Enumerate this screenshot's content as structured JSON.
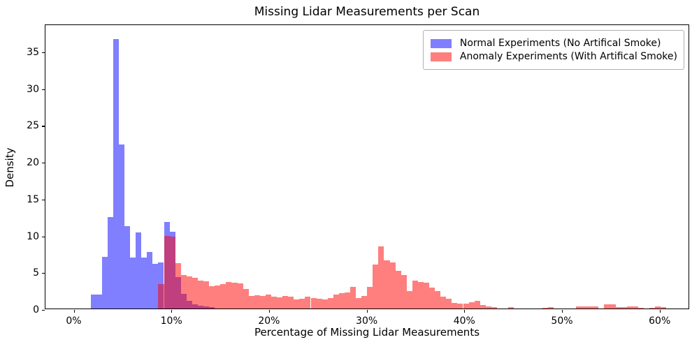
{
  "title": "Missing Lidar Measurements per Scan",
  "xlabel": "Percentage of Missing Lidar Measurements",
  "ylabel": "Density",
  "colors": {
    "normal_fill": "rgba(0,0,255,0.5)",
    "anomaly_fill": "rgba(255,0,0,0.5)",
    "normal_legend_swatch": "#7f7fff",
    "anomaly_legend_swatch": "#ff7f7f",
    "overlap_appearance": "#bf4080",
    "spine": "#000000",
    "legend_border": "#b0b0b0"
  },
  "legend": {
    "items": [
      {
        "label": "Normal Experiments (No Artifical Smoke)",
        "swatch": "#7f7fff"
      },
      {
        "label": "Anomaly Experiments (With Artifical Smoke)",
        "swatch": "#ff7f7f"
      }
    ],
    "position": "upper right"
  },
  "chart_data": {
    "type": "histogram",
    "title": "Missing Lidar Measurements per Scan",
    "xlabel": "Percentage of Missing Lidar Measurements",
    "ylabel": "Density",
    "xlim": [
      -2.9,
      63.1
    ],
    "ylim": [
      0,
      38.7
    ],
    "grid": false,
    "x_ticks": [
      {
        "value": 0,
        "label": "0%"
      },
      {
        "value": 10,
        "label": "10%"
      },
      {
        "value": 20,
        "label": "20%"
      },
      {
        "value": 30,
        "label": "30%"
      },
      {
        "value": 40,
        "label": "40%"
      },
      {
        "value": 50,
        "label": "50%"
      },
      {
        "value": 60,
        "label": "60%"
      }
    ],
    "y_ticks": [
      {
        "value": 0,
        "label": "0"
      },
      {
        "value": 5,
        "label": "5"
      },
      {
        "value": 10,
        "label": "10"
      },
      {
        "value": 15,
        "label": "15"
      },
      {
        "value": 20,
        "label": "20"
      },
      {
        "value": 25,
        "label": "25"
      },
      {
        "value": 30,
        "label": "30"
      },
      {
        "value": 35,
        "label": "35"
      }
    ],
    "series": [
      {
        "name": "Normal Experiments (No Artifical Smoke)",
        "fill": "rgba(0,0,255,0.5)",
        "bin_start_pct": 1.72,
        "bin_width_pct": 0.578,
        "densities": [
          1.9,
          1.9,
          7.0,
          12.4,
          36.6,
          22.3,
          11.2,
          6.9,
          10.3,
          6.9,
          7.7,
          6.1,
          6.3,
          11.8,
          10.4,
          4.3,
          2.0,
          1.0,
          0.6,
          0.4,
          0.25,
          0.15
        ]
      },
      {
        "name": "Anomaly Experiments (With Artifical Smoke)",
        "fill": "rgba(255,0,0,0.5)",
        "bin_start_pct": 8.66,
        "bin_width_pct": 0.578,
        "densities": [
          3.3,
          9.9,
          9.8,
          6.2,
          4.6,
          4.4,
          4.2,
          3.8,
          3.7,
          3.0,
          3.1,
          3.3,
          3.6,
          3.5,
          3.4,
          2.7,
          1.75,
          1.85,
          1.75,
          1.9,
          1.65,
          1.5,
          1.75,
          1.65,
          1.2,
          1.35,
          1.65,
          1.4,
          1.35,
          1.2,
          1.4,
          1.9,
          2.05,
          2.2,
          2.9,
          1.4,
          1.75,
          2.9,
          6.0,
          8.4,
          6.5,
          6.3,
          5.1,
          4.6,
          2.4,
          3.8,
          3.65,
          3.5,
          2.85,
          2.4,
          1.6,
          1.3,
          0.8,
          0.65,
          0.65,
          0.85,
          1.05,
          0.45,
          0.3,
          0.15,
          0,
          0,
          0.15,
          0,
          0,
          0,
          0,
          0,
          0.1,
          0.15,
          0,
          0,
          0,
          0,
          0.25,
          0.3,
          0.3,
          0.25,
          0,
          0.55,
          0.6,
          0.2,
          0.2,
          0.25,
          0.3,
          0.1,
          0,
          0.1,
          0.25,
          0.15
        ]
      }
    ]
  }
}
